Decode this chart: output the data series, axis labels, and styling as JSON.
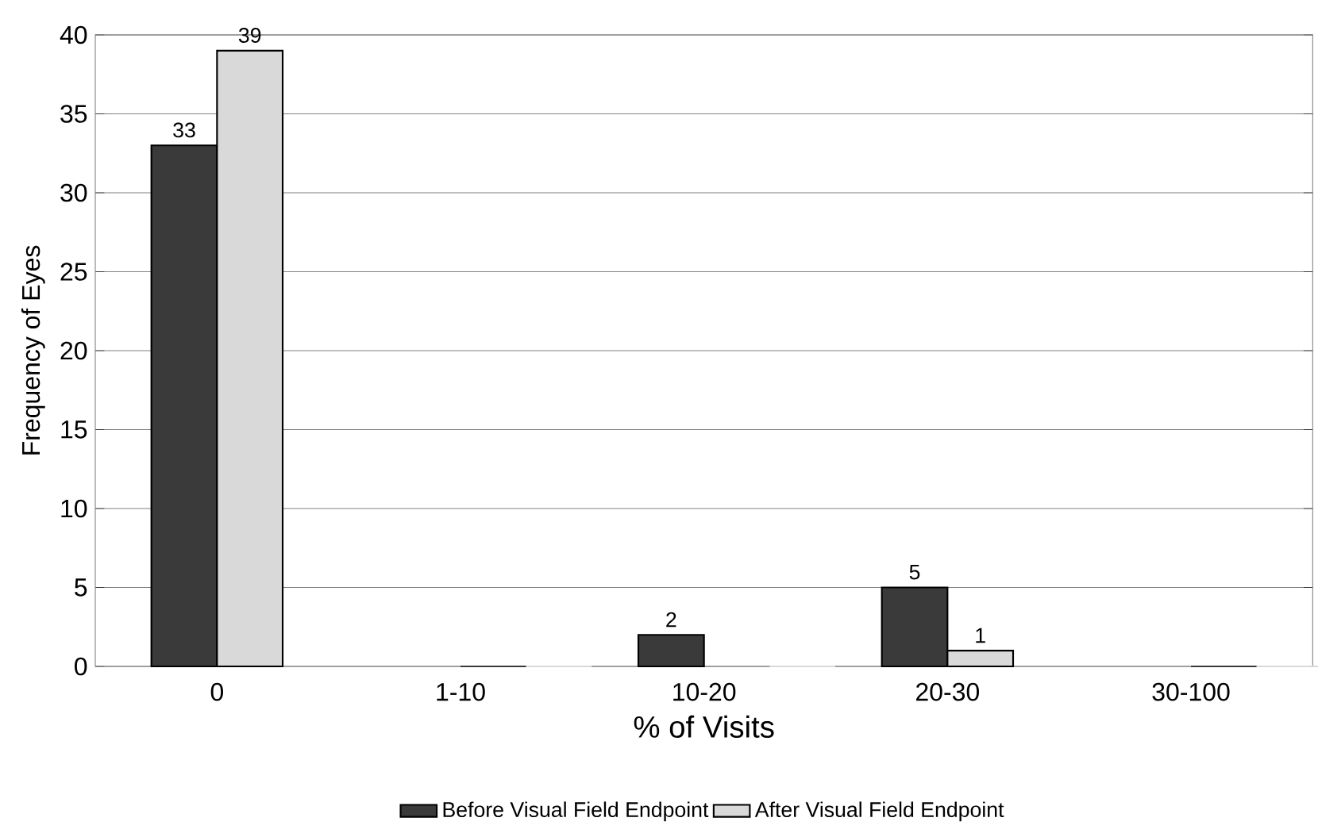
{
  "chart_data": {
    "type": "bar",
    "xlabel": "%  of Visits",
    "ylabel": "Frequency of Eyes",
    "categories": [
      "0",
      "1-10",
      "10-20",
      "20-30",
      "30-100"
    ],
    "series": [
      {
        "name": "Before Visual Field Endpoint",
        "color": "#3a3a3a",
        "values": [
          33,
          0,
          2,
          5,
          0
        ],
        "value_labels": [
          "33",
          null,
          "2",
          "5",
          null
        ]
      },
      {
        "name": "After Visual Field Endpoint",
        "color": "#d9d9d9",
        "values": [
          39,
          0,
          0,
          1,
          0
        ],
        "value_labels": [
          "39",
          null,
          null,
          "1",
          null
        ]
      }
    ],
    "ylim": [
      0,
      40
    ],
    "yticks": [
      0,
      5,
      10,
      15,
      20,
      25,
      30,
      35,
      40
    ],
    "grid": "y",
    "legend": "bottom"
  }
}
